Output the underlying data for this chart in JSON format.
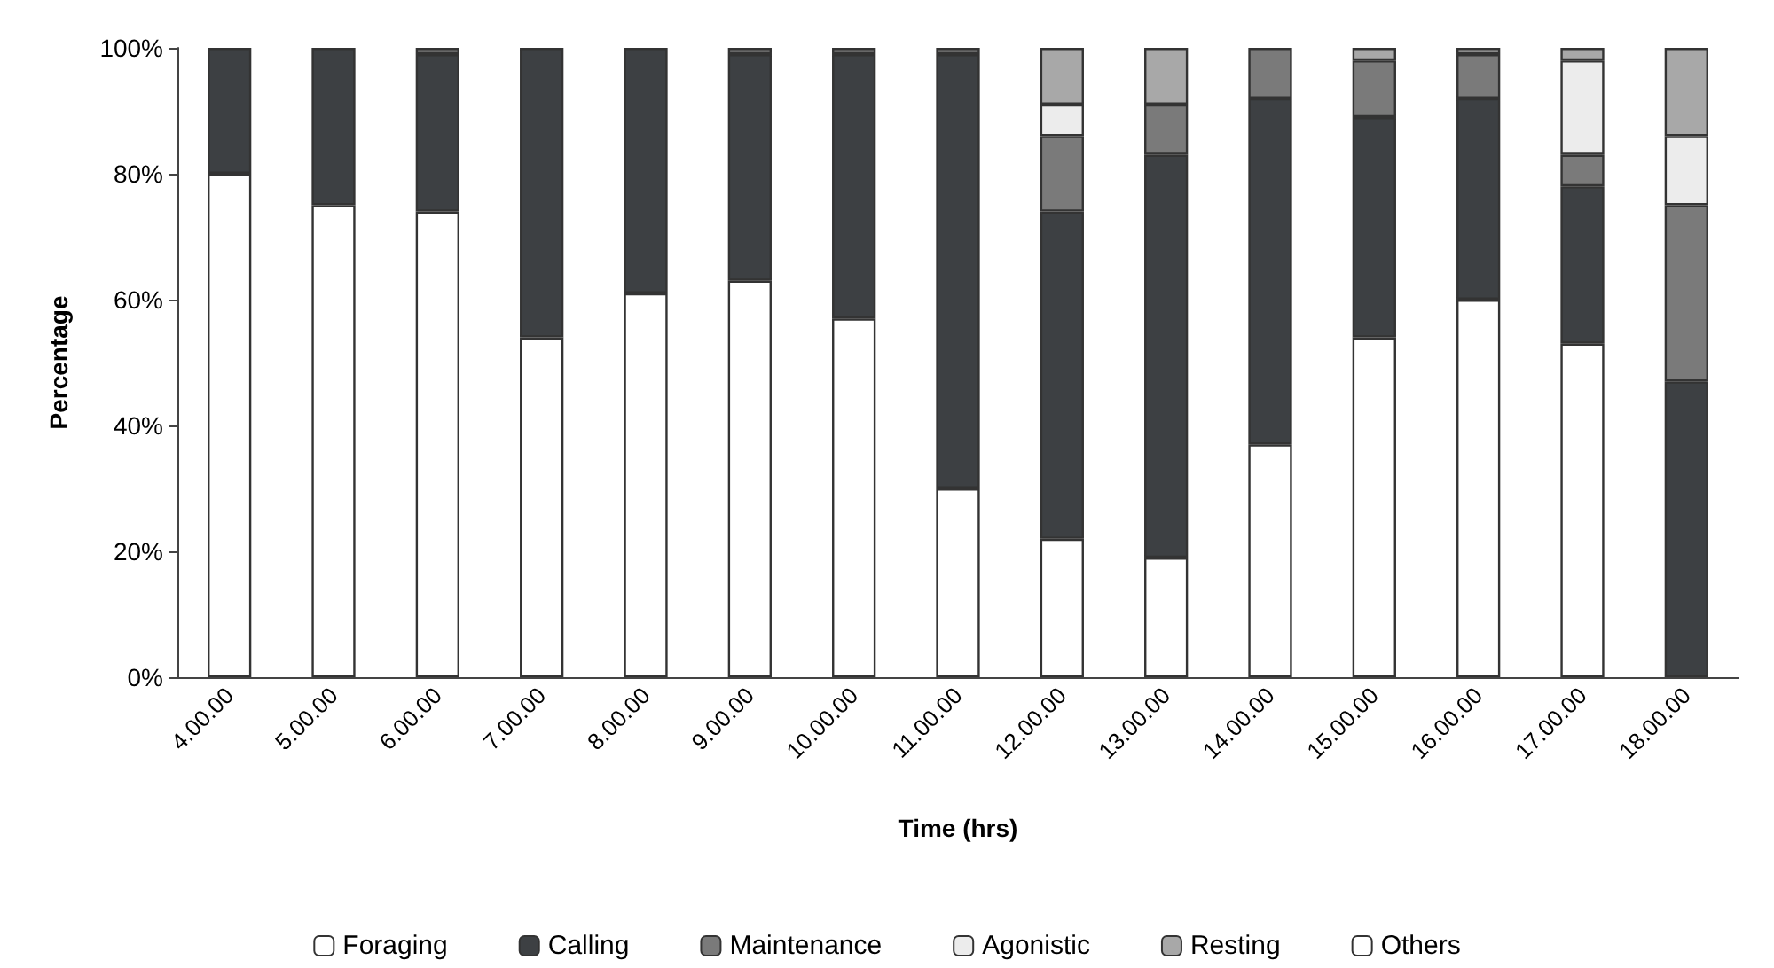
{
  "chart_data": {
    "type": "bar",
    "stacked": true,
    "xlabel": "Time (hrs)",
    "ylabel": "Percentage",
    "categories": [
      "4.00.00",
      "5.00.00",
      "6.00.00",
      "7.00.00",
      "8.00.00",
      "9.00.00",
      "10.00.00",
      "11.00.00",
      "12.00.00",
      "13.00.00",
      "14.00.00",
      "15.00.00",
      "16.00.00",
      "17.00.00",
      "18.00.00"
    ],
    "series": [
      {
        "name": "Foraging",
        "color": "#ffffff",
        "values": [
          80,
          75,
          74,
          54,
          61,
          63,
          57,
          30,
          22,
          19,
          37,
          54,
          60,
          53,
          0
        ]
      },
      {
        "name": "Calling",
        "color": "#3d4043",
        "values": [
          20,
          25,
          25,
          46,
          39,
          36,
          42,
          69,
          52,
          64,
          55,
          35,
          32,
          25,
          47
        ]
      },
      {
        "name": "Maintenance",
        "color": "#7a7a7a",
        "values": [
          0,
          0,
          1,
          0,
          0,
          1,
          1,
          1,
          12,
          8,
          8,
          9,
          7,
          5,
          28
        ]
      },
      {
        "name": "Agonistic",
        "color": "#ececec",
        "values": [
          0,
          0,
          0,
          0,
          0,
          0,
          0,
          0,
          5,
          0,
          0,
          0,
          0,
          15,
          11
        ]
      },
      {
        "name": "Resting",
        "color": "#a8a8a8",
        "values": [
          0,
          0,
          0,
          0,
          0,
          0,
          0,
          0,
          9,
          9,
          0,
          2,
          1,
          2,
          14
        ]
      },
      {
        "name": "Others",
        "color": "#ffffff",
        "values": [
          0,
          0,
          0,
          0,
          0,
          0,
          0,
          0,
          0,
          0,
          0,
          0,
          0,
          0,
          0
        ]
      }
    ],
    "ylim": [
      0,
      100
    ],
    "yticks": [
      {
        "value": 0,
        "label": "0%"
      },
      {
        "value": 20,
        "label": "20%"
      },
      {
        "value": 40,
        "label": "40%"
      },
      {
        "value": 60,
        "label": "60%"
      },
      {
        "value": 80,
        "label": "80%"
      },
      {
        "value": 100,
        "label": "100%"
      }
    ],
    "grid": false,
    "legend": "bottom"
  }
}
